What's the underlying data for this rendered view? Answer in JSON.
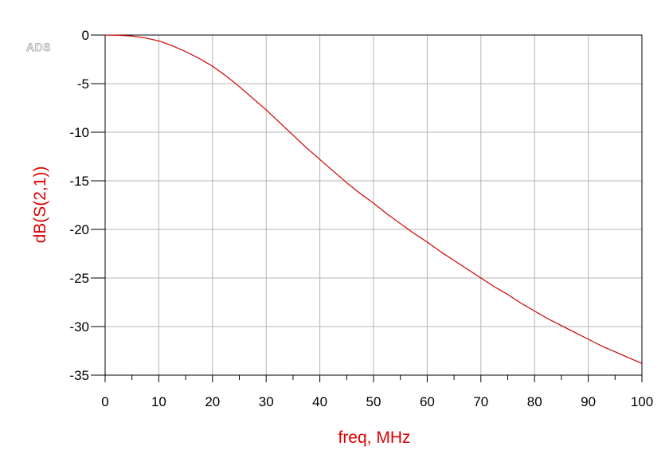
{
  "watermark": "ADS",
  "chart_data": {
    "type": "line",
    "title": "",
    "xlabel": "freq, MHz",
    "ylabel": "dB(S(2,1))",
    "xlim": [
      0,
      100
    ],
    "ylim": [
      -35,
      0
    ],
    "x_ticks": [
      "0",
      "10",
      "20",
      "30",
      "40",
      "50",
      "60",
      "70",
      "80",
      "90",
      "100"
    ],
    "y_ticks": [
      "0",
      "-5",
      "-10",
      "-15",
      "-20",
      "-25",
      "-30",
      "-35"
    ],
    "x_minor_step": 5,
    "grid": true,
    "legend": "none",
    "line_color": "#cc0000",
    "axis_label_color": "#e00000",
    "series": [
      {
        "x": [
          0,
          2.5,
          5,
          7.5,
          10,
          12.5,
          15,
          17.5,
          20,
          22.5,
          25,
          27.5,
          30,
          32.5,
          35,
          37.5,
          40,
          42.5,
          45,
          47.5,
          50,
          52.5,
          55,
          57.5,
          60,
          62.5,
          65,
          67.5,
          70,
          72.5,
          75,
          77.5,
          80,
          82.5,
          85,
          87.5,
          90,
          92.5,
          95,
          97.5,
          100
        ],
        "values": [
          0,
          -0.02,
          -0.1,
          -0.3,
          -0.6,
          -1.1,
          -1.7,
          -2.4,
          -3.2,
          -4.2,
          -5.3,
          -6.5,
          -7.7,
          -9.0,
          -10.3,
          -11.6,
          -12.8,
          -14.0,
          -15.2,
          -16.3,
          -17.3,
          -18.4,
          -19.4,
          -20.4,
          -21.3,
          -22.3,
          -23.2,
          -24.1,
          -25.0,
          -25.9,
          -26.7,
          -27.6,
          -28.4,
          -29.2,
          -29.9,
          -30.6,
          -31.3,
          -32.0,
          -32.6,
          -33.2,
          -33.8
        ]
      }
    ]
  }
}
